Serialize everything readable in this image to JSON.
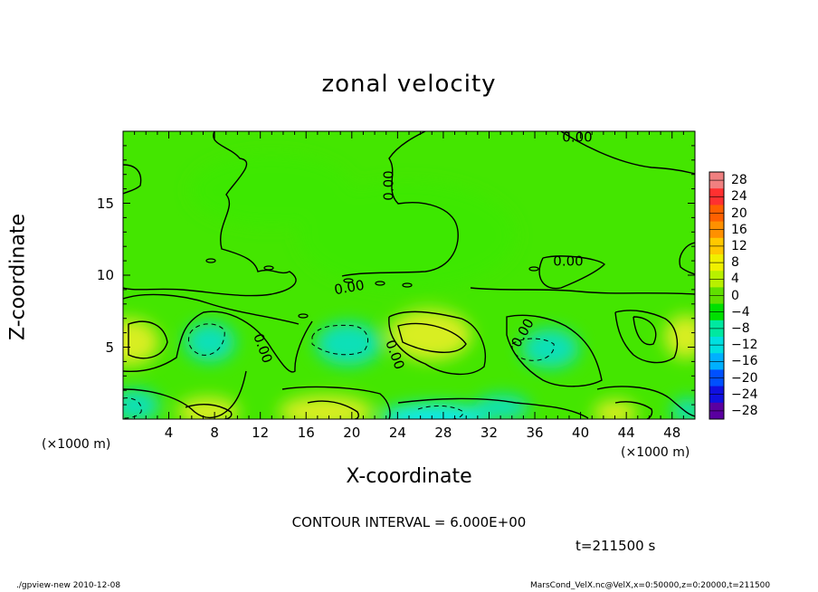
{
  "chart_data": {
    "type": "heatmap",
    "title": "zonal velocity",
    "xlabel": "X-coordinate",
    "ylabel": "Z-coordinate",
    "x_unit": "(×1000 m)",
    "xlim": [
      0,
      50
    ],
    "ylim": [
      0,
      20
    ],
    "x_ticks": [
      "4",
      "8",
      "12",
      "16",
      "20",
      "24",
      "28",
      "32",
      "36",
      "40",
      "44",
      "48"
    ],
    "y_ticks": [
      "5",
      "10",
      "15"
    ],
    "contour_labels": [
      "0.00",
      "0.00",
      "0.00",
      "0.00",
      "0.00",
      "0.00",
      "0.00"
    ],
    "colorbar": {
      "labels": [
        "28",
        "24",
        "20",
        "16",
        "12",
        "8",
        "4",
        "0",
        "−4",
        "−8",
        "−12",
        "−16",
        "−20",
        "−24",
        "−28"
      ],
      "colors": [
        "#f08080",
        "#ff3030",
        "#ff6000",
        "#ff9000",
        "#ffc800",
        "#f0f000",
        "#b8f000",
        "#60e000",
        "#00e000",
        "#00e8a0",
        "#00e0e0",
        "#00b0ff",
        "#0050ff",
        "#1010e0",
        "#5a00a0"
      ]
    },
    "contour_interval": "CONTOUR INTERVAL = 6.000E+00",
    "time": "t=211500 s",
    "colors": {
      "background": "#44e600",
      "positive": "#d8ee20",
      "negative": "#10e0b8",
      "strong_negative": "#10e8ec"
    }
  },
  "footer": {
    "left": "./gpview-new  2010-12-08",
    "right": "MarsCond_VelX.nc@VelX,x=0:50000,z=0:20000,t=211500"
  }
}
